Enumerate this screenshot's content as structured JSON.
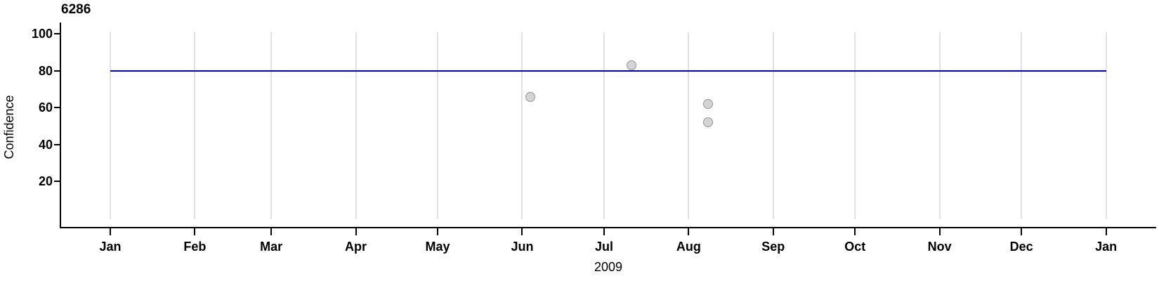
{
  "chart_data": {
    "type": "scatter",
    "title": "6286",
    "xlabel": "2009",
    "ylabel": "Confidence",
    "x_axis": {
      "domain": "2009-01-01 to 2010-01-01",
      "tick_labels": [
        "Jan",
        "Feb",
        "Mar",
        "Apr",
        "May",
        "Jun",
        "Jul",
        "Aug",
        "Sep",
        "Oct",
        "Nov",
        "Dec",
        "Jan"
      ],
      "tick_days": [
        0,
        31,
        59,
        90,
        120,
        151,
        181,
        212,
        243,
        273,
        304,
        334,
        365
      ],
      "days_in_year": 365
    },
    "y_axis": {
      "ticks": [
        20,
        40,
        60,
        80,
        100
      ],
      "range": [
        0,
        100
      ]
    },
    "grid": "vertical gridlines at month starts only",
    "legend": "none",
    "reference_line": {
      "type": "horizontal",
      "value": 80,
      "color": "#0000CC"
    },
    "series": [
      {
        "name": "confidence-points",
        "marker": "circle",
        "fill": "#D4D4D4",
        "stroke": "#969696",
        "points": [
          {
            "date": "2009-06-04",
            "day_of_year": 154,
            "confidence": 66
          },
          {
            "date": "2009-07-11",
            "day_of_year": 191,
            "confidence": 83
          },
          {
            "date": "2009-08-08",
            "day_of_year": 219,
            "confidence": 62
          },
          {
            "date": "2009-08-08",
            "day_of_year": 219,
            "confidence": 52
          }
        ]
      }
    ],
    "colors": {
      "axis": "#000000",
      "text": "#000000",
      "gridline": "#E1E1E1",
      "background": "#FFFFFF"
    }
  }
}
